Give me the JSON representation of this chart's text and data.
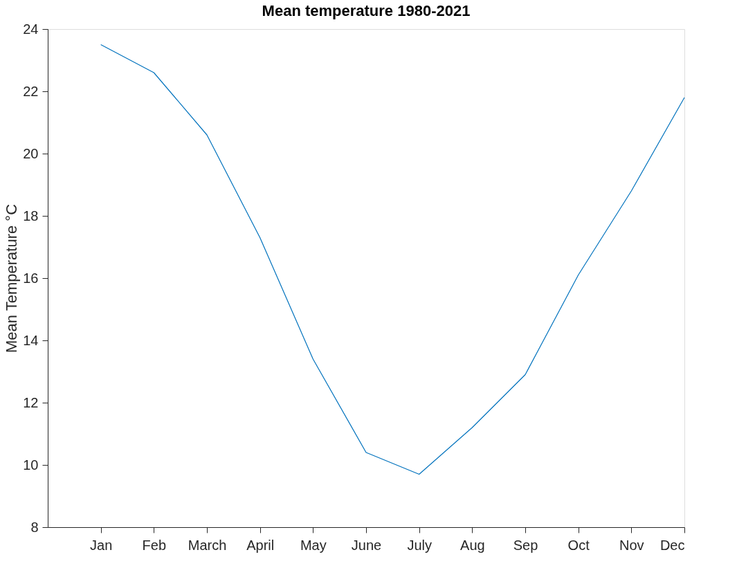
{
  "chart_data": {
    "type": "line",
    "title": "Mean temperature 1980-2021",
    "ylabel": "Mean Temperature °C",
    "categories": [
      "Jan",
      "Feb",
      "March",
      "April",
      "May",
      "June",
      "July",
      "Aug",
      "Sep",
      "Oct",
      "Nov",
      "Dec"
    ],
    "series": [
      {
        "color": "#0072bd",
        "values": [
          23.5,
          22.6,
          20.6,
          17.3,
          13.4,
          10.4,
          9.7,
          11.2,
          12.9,
          16.1,
          18.8,
          21.8
        ]
      }
    ],
    "ylim": [
      8,
      24
    ],
    "yticks": [
      8,
      10,
      12,
      14,
      16,
      18,
      20,
      22,
      24
    ],
    "grid": false,
    "legend": false,
    "marker": "none",
    "line_style": "solid"
  }
}
